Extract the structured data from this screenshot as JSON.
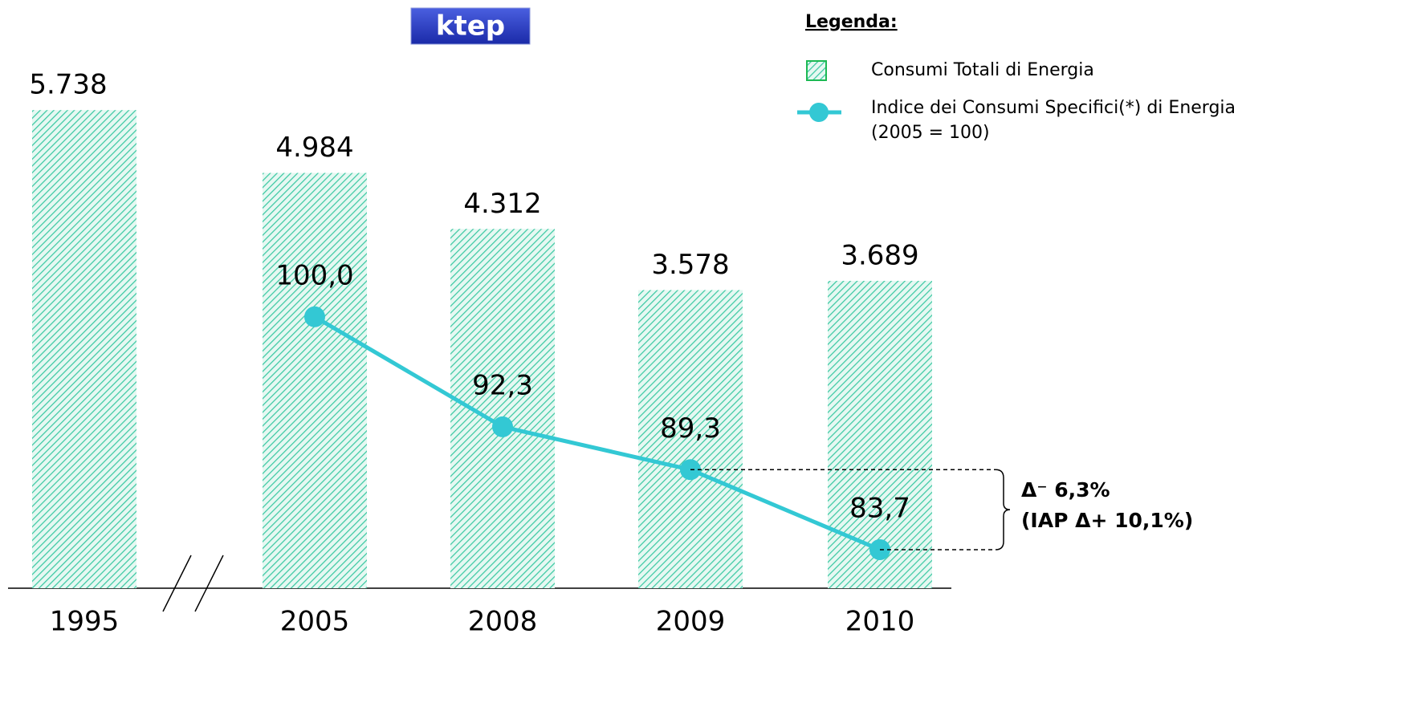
{
  "chart_data": {
    "type": "bar",
    "header": "ktep",
    "legend_title": "Legenda:",
    "legend_note": "(2005 = 100)",
    "categories": [
      "1995",
      "2005",
      "2008",
      "2009",
      "2010"
    ],
    "series": [
      {
        "name": "Consumi Totali di Energia",
        "type": "bar",
        "color": "#3cc9a3",
        "values": [
          5738,
          4984,
          4312,
          3578,
          3689
        ],
        "value_labels": [
          "5.738",
          "4.984",
          "4.312",
          "3.578",
          "3.689"
        ]
      },
      {
        "name": "Indice dei Consumi Specifici(*) di Energia",
        "type": "line",
        "axis": "y2",
        "color": "#33c8d4",
        "values": [
          null,
          100.0,
          92.3,
          89.3,
          83.7
        ],
        "value_labels": [
          null,
          "100,0",
          "92,3",
          "89,3",
          "83,7"
        ]
      }
    ],
    "ylim": [
      0,
      6000
    ],
    "y2lim": [
      81,
      116
    ],
    "annotation": [
      "Δ⁻ 6,3%",
      "(IAP Δ+ 10,1%)"
    ]
  }
}
